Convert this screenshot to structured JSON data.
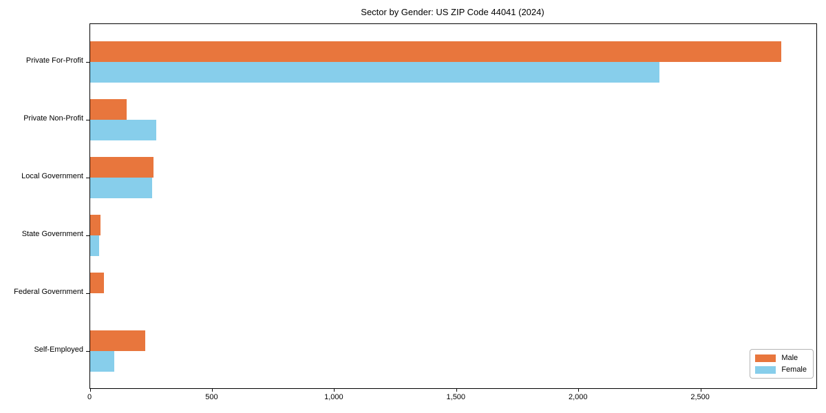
{
  "title": "Sector by Gender: US ZIP Code 44041 (2024)",
  "chart_data": {
    "type": "bar",
    "orientation": "horizontal",
    "title": "Sector by Gender: US ZIP Code 44041 (2024)",
    "categories": [
      "Private For-Profit",
      "Private Non-Profit",
      "Local Government",
      "State Government",
      "Federal Government",
      "Self-Employed"
    ],
    "series": [
      {
        "name": "Male",
        "color": "#E8763D",
        "values": [
          2830,
          150,
          260,
          42,
          55,
          225
        ]
      },
      {
        "name": "Female",
        "color": "#87CEEB",
        "values": [
          2330,
          270,
          255,
          36,
          0,
          100
        ]
      }
    ],
    "xlabel": "",
    "ylabel": "",
    "xlim": [
      0,
      2973
    ],
    "xticks": [
      0,
      500,
      1000,
      1500,
      2000,
      2500
    ],
    "xtick_labels": [
      "0",
      "500",
      "1,000",
      "1,500",
      "2,000",
      "2,500"
    ],
    "grid": false,
    "legend_position": "lower right",
    "frame_color": "#000000",
    "background_color": "#ffffff"
  }
}
